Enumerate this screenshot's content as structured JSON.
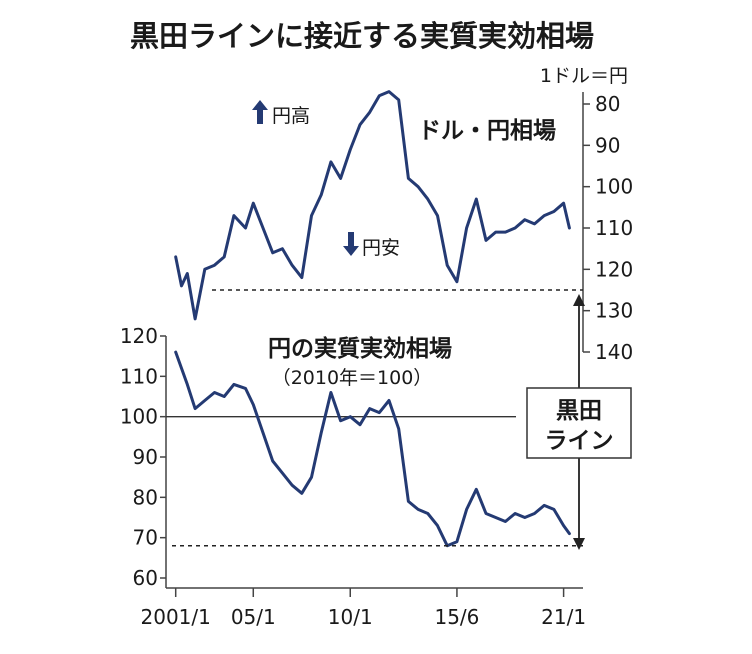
{
  "chart_data": [
    {
      "type": "line",
      "title": "黒田ラインに接近する実質実効相場",
      "label": "ドル・円相場",
      "unit": "1ドル＝円",
      "y_axis_side": "right",
      "y_inverted": true,
      "ylim": [
        80,
        140
      ],
      "yticks": [
        80,
        90,
        100,
        110,
        120,
        130,
        140
      ],
      "annotations": {
        "yen_up": "円高",
        "yen_down": "円安"
      },
      "x": [
        2001.0,
        2001.3,
        2001.6,
        2002.0,
        2002.5,
        2003.0,
        2003.5,
        2004.0,
        2004.6,
        2005.0,
        2005.5,
        2006.0,
        2006.5,
        2007.0,
        2007.5,
        2008.0,
        2008.5,
        2009.0,
        2009.5,
        2010.0,
        2010.5,
        2011.0,
        2011.5,
        2012.0,
        2012.5,
        2013.0,
        2013.5,
        2014.0,
        2014.5,
        2015.0,
        2015.5,
        2016.0,
        2016.5,
        2017.0,
        2017.5,
        2018.0,
        2018.5,
        2019.0,
        2019.5,
        2020.0,
        2020.5,
        2021.0,
        2021.3
      ],
      "values": [
        117,
        124,
        121,
        132,
        120,
        119,
        117,
        107,
        110,
        104,
        110,
        116,
        115,
        119,
        122,
        107,
        102,
        94,
        98,
        91,
        85,
        82,
        78,
        77,
        79,
        98,
        100,
        103,
        107,
        119,
        123,
        110,
        103,
        113,
        111,
        111,
        110,
        108,
        109,
        107,
        106,
        104,
        110
      ]
    },
    {
      "type": "line",
      "title": "円の実質実効相場",
      "subtitle": "（2010年＝100）",
      "y_axis_side": "left",
      "ylim": [
        60,
        120
      ],
      "yticks": [
        60,
        70,
        80,
        90,
        100,
        110,
        120
      ],
      "reference_line": 100,
      "x": [
        2001.0,
        2001.3,
        2001.6,
        2002.0,
        2002.5,
        2003.0,
        2003.5,
        2004.0,
        2004.6,
        2005.0,
        2005.5,
        2006.0,
        2006.5,
        2007.0,
        2007.5,
        2008.0,
        2008.5,
        2009.0,
        2009.5,
        2010.0,
        2010.5,
        2011.0,
        2011.5,
        2012.0,
        2012.5,
        2013.0,
        2013.5,
        2014.0,
        2014.5,
        2015.0,
        2015.5,
        2016.0,
        2016.5,
        2017.0,
        2017.5,
        2018.0,
        2018.5,
        2019.0,
        2019.5,
        2020.0,
        2020.5,
        2021.0,
        2021.3
      ],
      "values": [
        116,
        112,
        108,
        102,
        104,
        106,
        105,
        108,
        107,
        103,
        96,
        89,
        86,
        83,
        81,
        85,
        96,
        106,
        99,
        100,
        98,
        102,
        101,
        104,
        97,
        79,
        77,
        76,
        73,
        68,
        69,
        77,
        82,
        76,
        75,
        74,
        76,
        75,
        76,
        78,
        77,
        73,
        71
      ]
    }
  ],
  "x_axis": {
    "ticks": [
      "2001/1",
      "05/1",
      "10/1",
      "15/6",
      "21/1"
    ],
    "tick_years": [
      2001.0,
      2005.0,
      2010.0,
      2015.5,
      2021.0
    ],
    "xlim": [
      2000.5,
      2022.0
    ]
  },
  "kuroda_line": {
    "label_line1": "黒田",
    "label_line2": "ライン",
    "usdjpy_level": 125,
    "reer_level": 68
  },
  "colors": {
    "series": "#243a73",
    "text": "#1a1a1a",
    "axis": "#444444"
  }
}
